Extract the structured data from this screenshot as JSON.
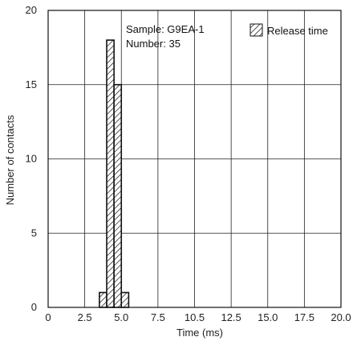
{
  "chart_data": {
    "type": "bar",
    "subtype": "histogram",
    "xlabel": "Time (ms)",
    "ylabel": "Number of contacts",
    "xlim": [
      0,
      20
    ],
    "ylim": [
      0,
      20
    ],
    "x_ticks": [
      0,
      2.5,
      5.0,
      7.5,
      10.5,
      12.5,
      15.0,
      17.5,
      20.0
    ],
    "x_tick_labels": [
      "0",
      "2.5",
      "5.0",
      "7.5",
      "10.5",
      "12.5",
      "15.0",
      "17.5",
      "20.0"
    ],
    "y_ticks": [
      0,
      5,
      10,
      15,
      20
    ],
    "y_tick_labels": [
      "0",
      "5",
      "10",
      "15",
      "20"
    ],
    "grid": true,
    "series": [
      {
        "name": "Release time",
        "fill": "hatched",
        "bins": [
          {
            "x0": 3.5,
            "x1": 4.0,
            "value": 1
          },
          {
            "x0": 4.0,
            "x1": 4.5,
            "value": 18
          },
          {
            "x0": 4.5,
            "x1": 5.0,
            "value": 15
          },
          {
            "x0": 5.0,
            "x1": 5.5,
            "value": 1
          }
        ]
      }
    ],
    "annotations": [
      "Sample: G9EA-1",
      "Number: 35"
    ],
    "legend": {
      "placement": "top-right",
      "label": "Release time"
    }
  }
}
